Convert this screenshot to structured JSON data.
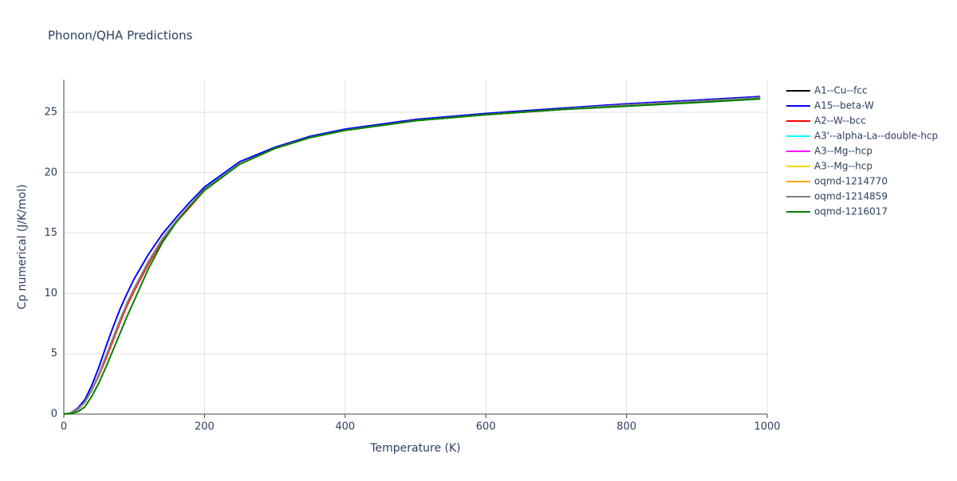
{
  "chart_data": {
    "type": "line",
    "title": "Phonon/QHA Predictions",
    "x_label": "Temperature (K)",
    "y_label": "Cp numerical (J/K/mol)",
    "x": [
      0,
      10,
      20,
      30,
      40,
      50,
      60,
      70,
      80,
      90,
      100,
      120,
      140,
      160,
      180,
      200,
      250,
      300,
      350,
      400,
      500,
      600,
      700,
      800,
      900,
      990
    ],
    "series": [
      {
        "name": "A1--Cu--fcc",
        "color": "#000000",
        "values": [
          0,
          0.08,
          0.4,
          1.0,
          2.0,
          3.3,
          4.8,
          6.3,
          7.8,
          9.2,
          10.4,
          12.6,
          14.5,
          16.0,
          17.3,
          18.5,
          20.7,
          22.0,
          22.9,
          23.5,
          24.3,
          24.8,
          25.2,
          25.6,
          25.9,
          26.2
        ]
      },
      {
        "name": "A15--beta-W",
        "color": "#0000ff",
        "values": [
          0,
          0.1,
          0.5,
          1.2,
          2.4,
          3.9,
          5.6,
          7.2,
          8.7,
          10.0,
          11.2,
          13.2,
          14.9,
          16.3,
          17.6,
          18.8,
          20.9,
          22.1,
          23.0,
          23.6,
          24.4,
          24.9,
          25.3,
          25.7,
          26.0,
          26.3
        ]
      },
      {
        "name": "A2--W--bcc",
        "color": "#ff0000",
        "values": [
          0,
          0.08,
          0.4,
          1.0,
          2.0,
          3.2,
          4.6,
          6.1,
          7.6,
          9.0,
          10.2,
          12.4,
          14.4,
          15.9,
          17.2,
          18.5,
          20.7,
          22.0,
          22.9,
          23.5,
          24.3,
          24.8,
          25.2,
          25.6,
          25.9,
          26.2
        ]
      },
      {
        "name": "A3'--alpha-La--double-hcp",
        "color": "#00ffff",
        "values": [
          0,
          0.08,
          0.4,
          1.0,
          2.0,
          3.3,
          4.8,
          6.3,
          7.8,
          9.2,
          10.4,
          12.6,
          14.5,
          16.0,
          17.3,
          18.5,
          20.7,
          22.0,
          22.9,
          23.5,
          24.3,
          24.8,
          25.2,
          25.6,
          25.9,
          26.2
        ]
      },
      {
        "name": "A3--Mg--hcp",
        "color": "#ff00ff",
        "values": [
          0,
          0.08,
          0.4,
          1.0,
          2.0,
          3.3,
          4.8,
          6.3,
          7.8,
          9.2,
          10.4,
          12.6,
          14.5,
          16.0,
          17.3,
          18.5,
          20.7,
          22.0,
          22.9,
          23.5,
          24.3,
          24.8,
          25.2,
          25.6,
          25.9,
          26.2
        ]
      },
      {
        "name": "A3--Mg--hcp",
        "color": "#ffd700",
        "values": [
          0,
          0.08,
          0.4,
          1.0,
          2.0,
          3.3,
          4.8,
          6.3,
          7.8,
          9.2,
          10.4,
          12.6,
          14.5,
          16.0,
          17.3,
          18.5,
          20.7,
          22.0,
          22.9,
          23.5,
          24.3,
          24.8,
          25.2,
          25.6,
          25.9,
          26.2
        ]
      },
      {
        "name": "oqmd-1214770",
        "color": "#ffa500",
        "values": [
          0,
          0.08,
          0.4,
          1.0,
          2.0,
          3.3,
          4.8,
          6.3,
          7.8,
          9.2,
          10.4,
          12.6,
          14.5,
          16.0,
          17.3,
          18.5,
          20.7,
          22.0,
          22.9,
          23.5,
          24.3,
          24.8,
          25.2,
          25.6,
          25.9,
          26.2
        ]
      },
      {
        "name": "oqmd-1214859",
        "color": "#808080",
        "values": [
          0,
          0.08,
          0.4,
          1.0,
          2.0,
          3.3,
          4.8,
          6.3,
          7.8,
          9.2,
          10.4,
          12.6,
          14.5,
          16.0,
          17.3,
          18.5,
          20.7,
          22.0,
          22.9,
          23.5,
          24.3,
          24.8,
          25.2,
          25.6,
          25.9,
          26.2
        ]
      },
      {
        "name": "oqmd-1216017",
        "color": "#008000",
        "values": [
          0,
          0.05,
          0.2,
          0.6,
          1.5,
          2.6,
          3.9,
          5.3,
          6.7,
          8.1,
          9.4,
          12.0,
          14.2,
          15.9,
          17.3,
          18.6,
          20.7,
          22.0,
          22.9,
          23.5,
          24.3,
          24.8,
          25.2,
          25.5,
          25.8,
          26.1
        ]
      }
    ],
    "xlim": [
      0,
      1000
    ],
    "xticks": [
      0,
      200,
      400,
      600,
      800,
      1000
    ],
    "ylim": [
      0,
      27.7
    ],
    "yticks": [
      0,
      5,
      10,
      15,
      20,
      25
    ],
    "grid": true,
    "legend": "right"
  }
}
